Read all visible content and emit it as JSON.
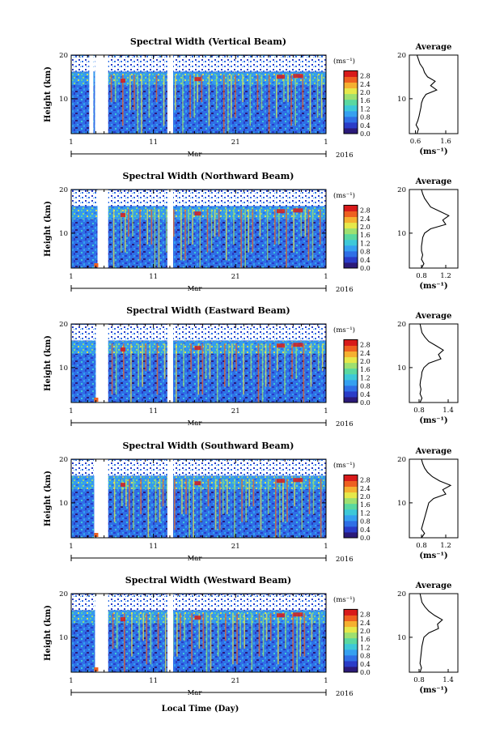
{
  "figure": {
    "xlabel": "Local Time (Day)",
    "month_label": "Mar",
    "year_label": "2016",
    "x_ticks": [
      "1",
      "11",
      "21",
      "1"
    ],
    "colorbar_unit": "(ms⁻¹)",
    "colorbar_ticks": [
      "0.0",
      "0.4",
      "0.8",
      "1.2",
      "1.6",
      "2.0",
      "2.4",
      "2.8"
    ],
    "colorbar_colors": [
      "#2b1a7a",
      "#2a3cc8",
      "#2f6fe6",
      "#35a0f0",
      "#3dc8d8",
      "#5ad8a0",
      "#9ee070",
      "#e6e84a",
      "#f5b030",
      "#ee6020",
      "#d81a1a"
    ],
    "avg_title": "Average",
    "avg_xlabel": "(ms⁻¹)"
  },
  "chart_data": [
    {
      "type": "heatmap",
      "title": "Spectral Width (Vertical Beam)",
      "ylabel": "Height (km)",
      "y_ticks": [
        "10",
        "20"
      ],
      "ylim": [
        2,
        20
      ],
      "xlim_days": [
        1,
        32
      ],
      "colorbar_range": [
        0.0,
        2.8
      ],
      "data_gaps_days": [
        [
          3.2,
          3.7
        ],
        [
          3.9,
          5.5
        ],
        [
          12.7,
          13.4
        ]
      ],
      "average_profile": {
        "title": "Average",
        "x_ticks": [
          "0.6",
          "1.6"
        ],
        "xlim": [
          0.4,
          2.0
        ],
        "y_ticks": [
          "10",
          "20"
        ],
        "height_km": [
          2,
          3,
          4,
          5,
          6,
          7,
          8,
          9,
          10,
          11,
          12,
          13,
          14,
          15,
          16,
          17,
          18,
          19,
          20
        ],
        "width": [
          0.65,
          0.7,
          0.62,
          0.68,
          0.72,
          0.75,
          0.78,
          0.8,
          0.85,
          0.95,
          1.3,
          1.1,
          1.25,
          1.0,
          0.9,
          0.85,
          0.75,
          0.7,
          0.65
        ]
      }
    },
    {
      "type": "heatmap",
      "title": "Spectral Width (Northward Beam)",
      "ylabel": "Height (km)",
      "y_ticks": [
        "10",
        "20"
      ],
      "ylim": [
        2,
        20
      ],
      "xlim_days": [
        1,
        32
      ],
      "colorbar_range": [
        0.0,
        2.8
      ],
      "data_gaps_days": [
        [
          4.2,
          5.5
        ],
        [
          12.7,
          13.4
        ]
      ],
      "average_profile": {
        "title": "Average",
        "x_ticks": [
          "0.8",
          "1.2"
        ],
        "xlim": [
          0.6,
          1.4
        ],
        "y_ticks": [
          "10",
          "20"
        ],
        "height_km": [
          2,
          3,
          4,
          5,
          6,
          7,
          8,
          9,
          10,
          11,
          12,
          13,
          14,
          15,
          16,
          17,
          18,
          19,
          20
        ],
        "width": [
          0.8,
          0.84,
          0.8,
          0.82,
          0.8,
          0.8,
          0.81,
          0.82,
          0.85,
          0.95,
          1.2,
          1.15,
          1.25,
          1.1,
          0.95,
          0.9,
          0.85,
          0.82,
          0.8
        ]
      }
    },
    {
      "type": "heatmap",
      "title": "Spectral Width (Eastward Beam)",
      "ylabel": "Height (km)",
      "y_ticks": [
        "10",
        "20"
      ],
      "ylim": [
        2,
        20
      ],
      "xlim_days": [
        1,
        32
      ],
      "colorbar_range": [
        0.0,
        2.8
      ],
      "data_gaps_days": [
        [
          4.0,
          5.5
        ],
        [
          12.7,
          13.4
        ]
      ],
      "average_profile": {
        "title": "Average",
        "x_ticks": [
          "0.8",
          "1.4"
        ],
        "xlim": [
          0.6,
          1.6
        ],
        "y_ticks": [
          "10",
          "20"
        ],
        "height_km": [
          2,
          3,
          4,
          5,
          6,
          7,
          8,
          9,
          10,
          11,
          12,
          13,
          14,
          15,
          16,
          17,
          18,
          19,
          20
        ],
        "width": [
          0.82,
          0.86,
          0.82,
          0.84,
          0.82,
          0.83,
          0.85,
          0.86,
          0.9,
          1.0,
          1.25,
          1.2,
          1.3,
          1.15,
          1.0,
          0.92,
          0.86,
          0.84,
          0.82
        ]
      }
    },
    {
      "type": "heatmap",
      "title": "Spectral Width (Southward Beam)",
      "ylabel": "Height (km)",
      "y_ticks": [
        "10",
        "20"
      ],
      "ylim": [
        2,
        20
      ],
      "xlim_days": [
        1,
        32
      ],
      "colorbar_range": [
        0.0,
        2.8
      ],
      "data_gaps_days": [
        [
          3.8,
          5.5
        ],
        [
          12.7,
          13.4
        ]
      ],
      "average_profile": {
        "title": "Average",
        "x_ticks": [
          "0.8",
          "1.2"
        ],
        "xlim": [
          0.6,
          1.4
        ],
        "y_ticks": [
          "10",
          "20"
        ],
        "height_km": [
          2,
          3,
          4,
          5,
          6,
          7,
          8,
          9,
          10,
          11,
          12,
          13,
          14,
          15,
          16,
          17,
          18,
          19,
          20
        ],
        "width": [
          0.8,
          0.85,
          0.8,
          0.82,
          0.84,
          0.86,
          0.88,
          0.9,
          0.92,
          1.0,
          1.2,
          1.15,
          1.28,
          1.1,
          0.98,
          0.9,
          0.85,
          0.82,
          0.8
        ]
      }
    },
    {
      "type": "heatmap",
      "title": "Spectral Width (Westward Beam)",
      "ylabel": "Height (km)",
      "y_ticks": [
        "10",
        "20"
      ],
      "ylim": [
        2,
        20
      ],
      "xlim_days": [
        1,
        32
      ],
      "colorbar_range": [
        0.0,
        2.8
      ],
      "data_gaps_days": [
        [
          3.9,
          5.5
        ],
        [
          12.7,
          13.4
        ]
      ],
      "average_profile": {
        "title": "Average",
        "x_ticks": [
          "0.8",
          "1.4"
        ],
        "xlim": [
          0.6,
          1.6
        ],
        "y_ticks": [
          "10",
          "20"
        ],
        "height_km": [
          2,
          3,
          4,
          5,
          6,
          7,
          8,
          9,
          10,
          11,
          12,
          13,
          14,
          15,
          16,
          17,
          18,
          19,
          20
        ],
        "width": [
          0.82,
          0.85,
          0.82,
          0.83,
          0.84,
          0.85,
          0.86,
          0.88,
          0.9,
          1.0,
          1.2,
          1.18,
          1.28,
          1.12,
          1.0,
          0.92,
          0.86,
          0.84,
          0.82
        ]
      }
    }
  ]
}
